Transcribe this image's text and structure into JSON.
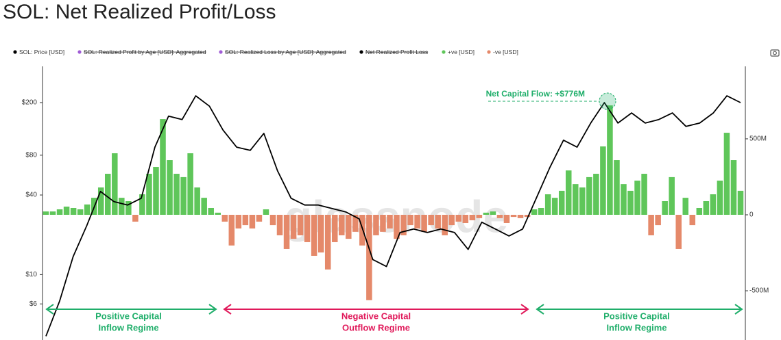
{
  "chart_data": {
    "type": "combo",
    "title": "SOL: Net Realized Profit/Loss",
    "log_scale": true,
    "ylim": [
      3.2,
      376
    ],
    "yticks": [
      {
        "value": 6,
        "label": "$6"
      },
      {
        "value": 10,
        "label": "$10"
      },
      {
        "value": 40,
        "label": "$40"
      },
      {
        "value": 80,
        "label": "$80"
      },
      {
        "value": 200,
        "label": "$200"
      }
    ],
    "y2lim": [
      -824000000,
      977000000
    ],
    "y2ticks": [
      {
        "value": 500000000,
        "label": "500M"
      },
      0,
      {
        "value": -500000000,
        "label": "-500M"
      }
    ],
    "hidden_series": [
      {
        "name": "SOL: Realized Profit by Age [USD]: Aggregated",
        "color": "#a05cd6"
      },
      {
        "name": "SOL: Realized Loss by Age [USD]: Aggregated",
        "color": "#a05cd6"
      },
      {
        "name": "Net Realized Profit Loss",
        "color": "#000000"
      }
    ],
    "series": [
      {
        "name": "SOL: Price [USD]",
        "type": "line",
        "color": "#000000",
        "axis": "y",
        "values": [
          3.42,
          6.3,
          13.7,
          23.5,
          42.6,
          35.6,
          33.6,
          37.8,
          92,
          158,
          149,
          225,
          188,
          124,
          92,
          87,
          117,
          61,
          37.8,
          33.6,
          33.6,
          31.6,
          29.8,
          26.4,
          13,
          11.5,
          20.8,
          22.1,
          20.8,
          22.1,
          20.8,
          15.5,
          24.9,
          22.1,
          19.6,
          22.1,
          37.8,
          64.6,
          104,
          92,
          140,
          200,
          140,
          167,
          140,
          149,
          167,
          132,
          140,
          167,
          225,
          200
        ]
      },
      {
        "name": "+ve [USD]",
        "type": "bar",
        "color": "#5fc65a",
        "axis": "y2",
        "values": [
          22000000,
          22000000,
          36000000,
          54000000,
          45000000,
          36000000,
          68000000,
          112000000,
          180000000,
          270000000,
          405000000,
          112000000,
          90000000,
          null,
          135000000,
          270000000,
          315000000,
          630000000,
          360000000,
          270000000,
          248000000,
          405000000,
          180000000,
          112000000,
          45000000,
          14000000,
          null,
          null,
          null,
          null,
          null,
          null,
          36000000,
          null,
          null,
          null,
          null,
          null,
          null,
          null,
          null,
          null,
          null,
          null,
          null,
          null,
          null,
          null,
          null,
          null,
          null,
          null,
          null,
          null,
          null,
          null,
          null,
          null,
          null,
          null,
          null,
          null,
          null,
          null,
          14000000,
          22000000,
          null,
          null,
          null,
          null,
          null,
          36000000,
          45000000,
          135000000,
          112000000,
          158000000,
          292000000,
          202000000,
          180000000,
          248000000,
          270000000,
          450000000,
          720000000,
          360000000,
          202000000,
          158000000,
          225000000,
          270000000,
          null,
          null,
          90000000,
          248000000,
          null,
          112000000,
          null,
          45000000,
          90000000,
          135000000,
          225000000,
          540000000,
          360000000,
          158000000
        ]
      },
      {
        "name": "-ve [USD]",
        "type": "bar",
        "color": "#e5896a",
        "axis": "y2",
        "values": [
          null,
          null,
          null,
          null,
          null,
          null,
          null,
          null,
          null,
          null,
          null,
          null,
          null,
          -45000000,
          null,
          null,
          null,
          null,
          null,
          null,
          null,
          null,
          null,
          null,
          null,
          null,
          -45000000,
          -202000000,
          -90000000,
          -68000000,
          -90000000,
          -45000000,
          null,
          -68000000,
          -135000000,
          -225000000,
          -158000000,
          -135000000,
          -180000000,
          -270000000,
          -248000000,
          -360000000,
          -180000000,
          -135000000,
          -158000000,
          -112000000,
          -202000000,
          -562000000,
          -135000000,
          -112000000,
          -90000000,
          -158000000,
          -135000000,
          -68000000,
          -90000000,
          -112000000,
          -68000000,
          -90000000,
          -135000000,
          -68000000,
          -45000000,
          -54000000,
          -36000000,
          -22000000,
          null,
          null,
          -22000000,
          -54000000,
          -14000000,
          -22000000,
          -14000000,
          null,
          null,
          null,
          null,
          null,
          null,
          null,
          null,
          null,
          null,
          null,
          null,
          null,
          null,
          null,
          null,
          null,
          -135000000,
          -68000000,
          null,
          null,
          -225000000,
          null,
          -68000000,
          null,
          null,
          null,
          null,
          null,
          null,
          null
        ]
      }
    ],
    "annotation": "Net Capital Flow: +$776M",
    "annotation_color": "#1fae6a",
    "watermark": "glassnode",
    "regimes": [
      {
        "lines": [
          "Positive Capital",
          "Inflow Regime"
        ],
        "color": "#1fae6a"
      },
      {
        "lines": [
          "Negative Capital",
          "Outflow Regime"
        ],
        "color": "#e0195a"
      },
      {
        "lines": [
          "Positive Capital",
          "Inflow Regime"
        ],
        "color": "#1fae6a"
      }
    ]
  }
}
